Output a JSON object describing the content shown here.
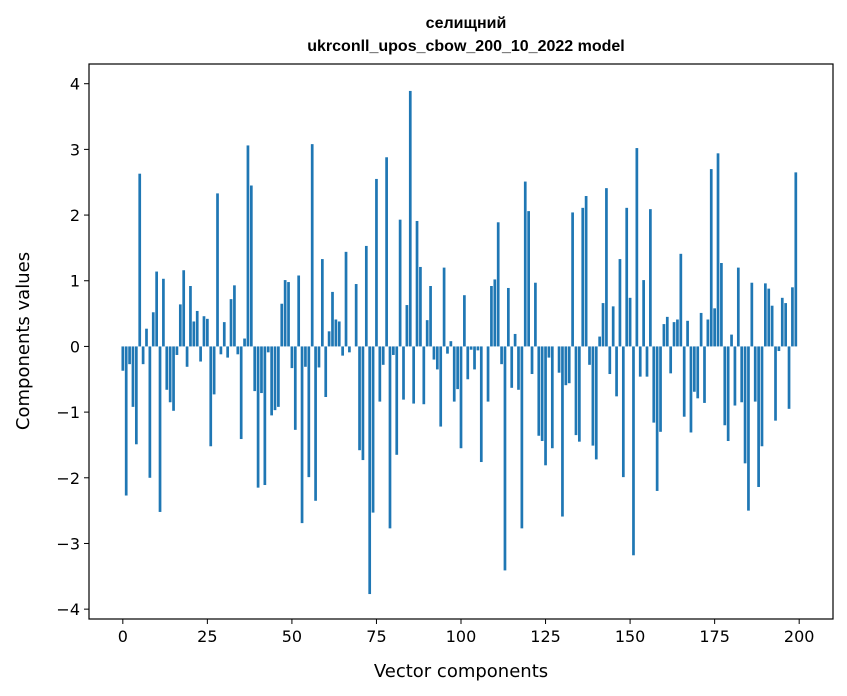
{
  "chart_data": {
    "type": "bar",
    "title_line1": "селищний",
    "title_line2": "ukrconll_upos_cbow_200_10_2022 model",
    "xlabel": "Vector components",
    "ylabel": "Components values",
    "xlim": [
      -10,
      210
    ],
    "ylim": [
      -4.15,
      4.3
    ],
    "xticks": [
      0,
      25,
      50,
      75,
      100,
      125,
      150,
      175,
      200
    ],
    "yticks": [
      -4,
      -3,
      -2,
      -1,
      0,
      1,
      2,
      3,
      4
    ],
    "xtick_labels": [
      "0",
      "25",
      "50",
      "75",
      "100",
      "125",
      "150",
      "175",
      "200"
    ],
    "ytick_labels": [
      "−4",
      "−3",
      "−2",
      "−1",
      "0",
      "1",
      "2",
      "3",
      "4"
    ],
    "color": "#1f77b4",
    "values": [
      -0.37,
      -2.27,
      -0.27,
      -0.92,
      -1.49,
      2.63,
      -0.27,
      0.27,
      -2.0,
      0.52,
      1.14,
      -2.52,
      1.03,
      -0.66,
      -0.85,
      -0.98,
      -0.13,
      0.64,
      1.16,
      -0.31,
      0.92,
      0.38,
      0.54,
      -0.23,
      0.46,
      0.42,
      -1.52,
      -0.73,
      2.33,
      -0.12,
      0.37,
      -0.17,
      0.72,
      0.93,
      -0.12,
      -1.41,
      0.12,
      3.06,
      2.45,
      -0.68,
      -2.15,
      -0.71,
      -2.11,
      -0.09,
      -1.05,
      -0.97,
      -0.92,
      0.65,
      1.01,
      0.98,
      -0.33,
      -1.27,
      1.08,
      -2.69,
      -0.31,
      -1.99,
      3.08,
      -2.35,
      -0.32,
      1.33,
      -0.77,
      0.23,
      0.83,
      0.41,
      0.38,
      -0.14,
      1.44,
      -0.09,
      0.0,
      0.95,
      -1.58,
      -1.73,
      1.53,
      -3.77,
      -2.53,
      2.55,
      -0.84,
      -0.28,
      2.88,
      -2.77,
      -0.13,
      -1.65,
      1.93,
      -0.81,
      0.63,
      3.89,
      -0.87,
      1.91,
      1.21,
      -0.88,
      0.4,
      0.92,
      -0.2,
      -0.35,
      -1.22,
      1.2,
      -0.11,
      0.08,
      -0.84,
      -0.65,
      -1.55,
      0.78,
      -0.5,
      -0.05,
      -0.35,
      -0.06,
      -1.76,
      0.0,
      -0.84,
      0.92,
      1.02,
      1.89,
      -0.27,
      -3.41,
      0.89,
      -0.63,
      0.19,
      -0.66,
      -2.77,
      2.51,
      2.06,
      -0.42,
      0.97,
      -1.36,
      -1.44,
      -1.81,
      -0.17,
      -1.55,
      0.0,
      -0.4,
      -2.59,
      -0.59,
      -0.56,
      2.04,
      -1.35,
      -1.45,
      2.11,
      2.29,
      -0.28,
      -1.51,
      -1.72,
      0.15,
      0.66,
      2.41,
      -0.42,
      0.61,
      -0.76,
      1.33,
      -1.99,
      2.11,
      0.74,
      -3.18,
      3.02,
      -0.46,
      1.01,
      -0.46,
      2.09,
      -1.16,
      -2.2,
      -1.3,
      0.34,
      0.45,
      -0.41,
      0.37,
      0.41,
      1.41,
      -1.07,
      0.39,
      -1.31,
      -0.69,
      -0.79,
      0.51,
      -0.86,
      0.41,
      2.7,
      0.58,
      2.94,
      1.27,
      -1.2,
      -1.44,
      0.18,
      -0.9,
      1.2,
      -0.85,
      -1.78,
      -2.5,
      0.97,
      -0.84,
      -2.14,
      -1.52,
      0.96,
      0.88,
      0.62,
      -1.13,
      -0.07,
      0.74,
      0.66,
      -0.95,
      0.9,
      2.65
    ]
  }
}
